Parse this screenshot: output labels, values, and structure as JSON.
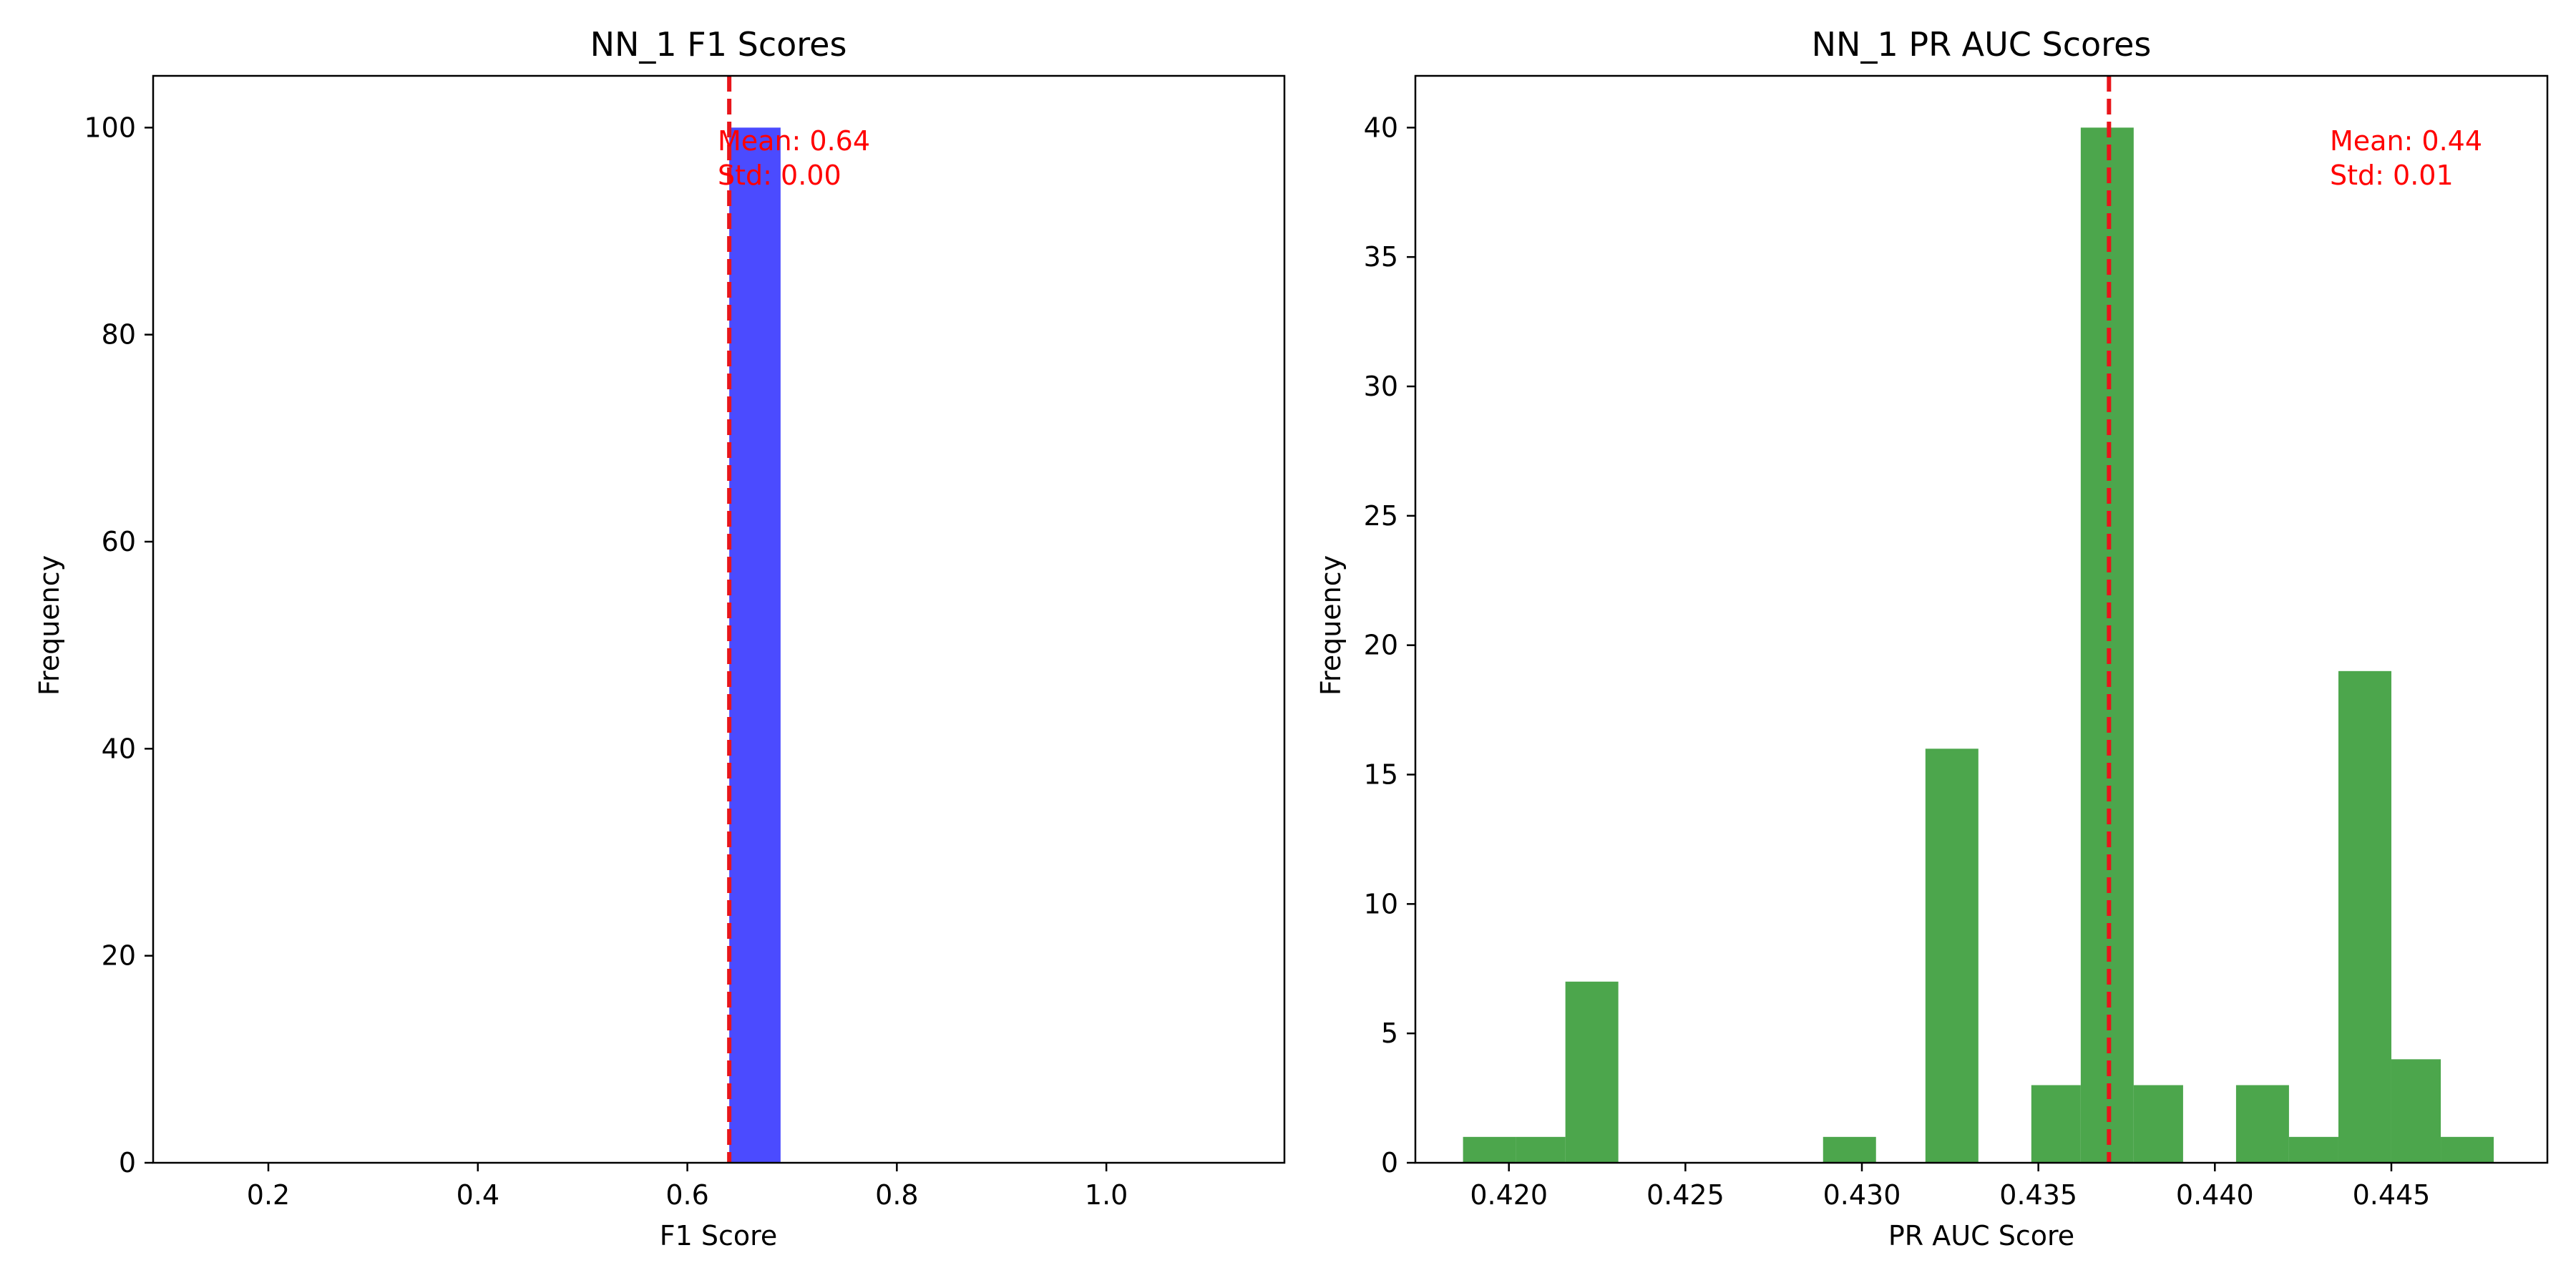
{
  "chart_data": [
    {
      "type": "bar",
      "title": "NN_1 F1 Scores",
      "xlabel": "F1 Score",
      "ylabel": "Frequency",
      "xlim": [
        0.09,
        1.17
      ],
      "ylim": [
        0,
        105
      ],
      "xticks": [
        0.2,
        0.4,
        0.6,
        0.8,
        1.0
      ],
      "xtick_labels": [
        "0.2",
        "0.4",
        "0.6",
        "0.8",
        "1.0"
      ],
      "yticks": [
        0,
        20,
        40,
        60,
        80,
        100
      ],
      "ytick_labels": [
        "0",
        "20",
        "40",
        "60",
        "80",
        "100"
      ],
      "bars": [
        {
          "x0": 0.64,
          "x1": 0.689,
          "value": 100
        }
      ],
      "bar_color": "#4b4bff",
      "mean_line": {
        "x": 0.64,
        "color": "#e8151b"
      },
      "annotations": [
        "Mean: 0.64",
        "Std: 0.00"
      ],
      "annotation_color": "#ff0000",
      "grid": false
    },
    {
      "type": "bar",
      "title": "NN_1 PR AUC Scores",
      "xlabel": "PR AUC Score",
      "ylabel": "Frequency",
      "xlim": [
        0.41735,
        0.44942
      ],
      "ylim": [
        0,
        42
      ],
      "xticks": [
        0.42,
        0.425,
        0.43,
        0.435,
        0.44,
        0.445
      ],
      "xtick_labels": [
        "0.420",
        "0.425",
        "0.430",
        "0.435",
        "0.440",
        "0.445"
      ],
      "yticks": [
        0,
        5,
        10,
        15,
        20,
        25,
        30,
        35,
        40
      ],
      "ytick_labels": [
        "0",
        "5",
        "10",
        "15",
        "20",
        "25",
        "30",
        "35",
        "40"
      ],
      "bars": [
        {
          "x0": 0.4187,
          "x1": 0.4202,
          "value": 1
        },
        {
          "x0": 0.4202,
          "x1": 0.4216,
          "value": 1
        },
        {
          "x0": 0.4216,
          "x1": 0.4231,
          "value": 7
        },
        {
          "x0": 0.4231,
          "x1": 0.4245,
          "value": 0
        },
        {
          "x0": 0.4245,
          "x1": 0.426,
          "value": 0
        },
        {
          "x0": 0.426,
          "x1": 0.4275,
          "value": 0
        },
        {
          "x0": 0.4275,
          "x1": 0.4289,
          "value": 0
        },
        {
          "x0": 0.4289,
          "x1": 0.4304,
          "value": 1
        },
        {
          "x0": 0.4304,
          "x1": 0.4318,
          "value": 0
        },
        {
          "x0": 0.4318,
          "x1": 0.4333,
          "value": 16
        },
        {
          "x0": 0.4333,
          "x1": 0.4348,
          "value": 0
        },
        {
          "x0": 0.4348,
          "x1": 0.4362,
          "value": 3
        },
        {
          "x0": 0.4362,
          "x1": 0.4377,
          "value": 40
        },
        {
          "x0": 0.4377,
          "x1": 0.4391,
          "value": 3
        },
        {
          "x0": 0.4391,
          "x1": 0.4406,
          "value": 0
        },
        {
          "x0": 0.4406,
          "x1": 0.4421,
          "value": 3
        },
        {
          "x0": 0.4421,
          "x1": 0.4435,
          "value": 1
        },
        {
          "x0": 0.4435,
          "x1": 0.445,
          "value": 19
        },
        {
          "x0": 0.445,
          "x1": 0.4464,
          "value": 4
        },
        {
          "x0": 0.4464,
          "x1": 0.4479,
          "value": 1
        }
      ],
      "bar_color": "#4ca64c",
      "mean_line": {
        "x": 0.437,
        "color": "#e8151b"
      },
      "annotations": [
        "Mean: 0.44",
        "Std: 0.01"
      ],
      "annotation_color": "#ff0000",
      "grid": false
    }
  ]
}
